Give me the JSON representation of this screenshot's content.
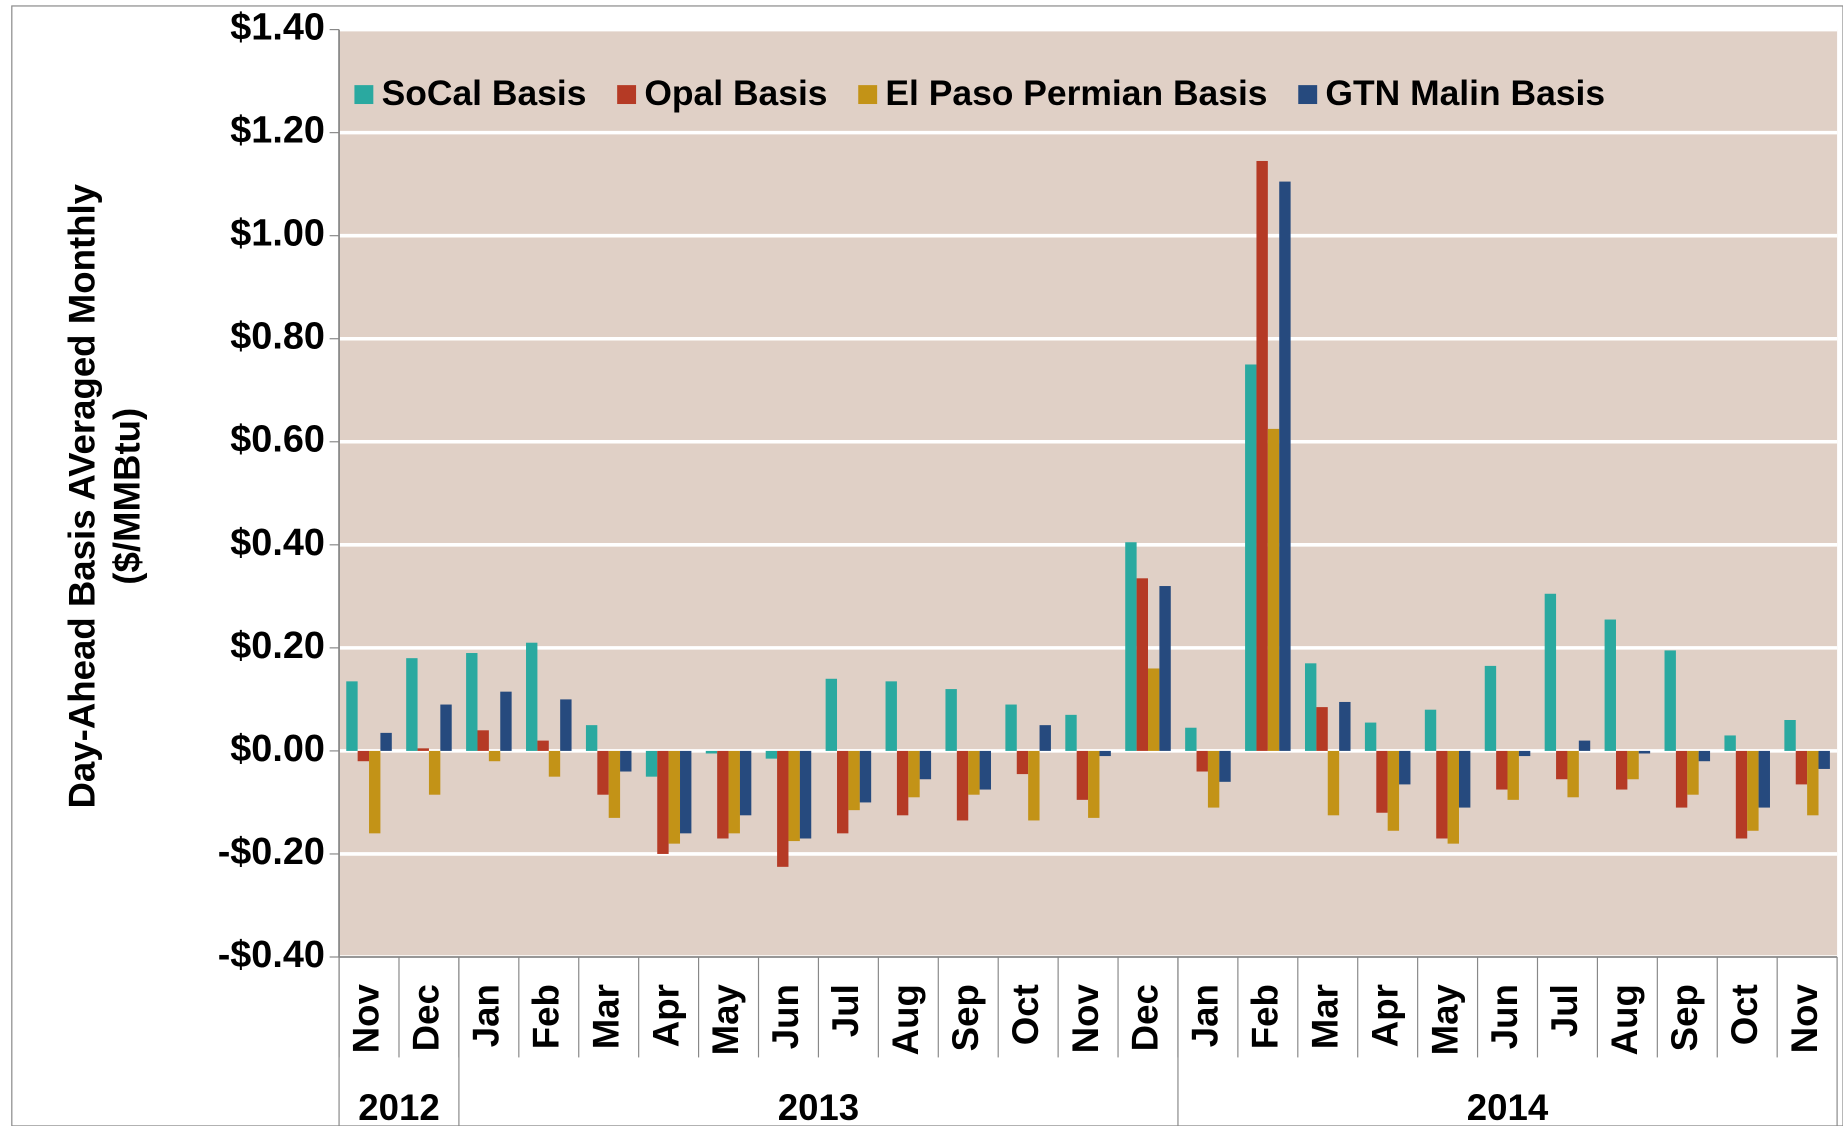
{
  "chart_data": {
    "type": "bar",
    "y_label": "Day-Ahead Basis AVeraged Monthly",
    "y_label_units": "($/MMBtu)",
    "groups": [
      {
        "label": "2012",
        "categories": [
          "Nov",
          "Dec"
        ]
      },
      {
        "label": "2013",
        "categories": [
          "Jan",
          "Feb",
          "Mar",
          "Apr",
          "May",
          "Jun",
          "Jul",
          "Aug",
          "Sep",
          "Oct",
          "Nov",
          "Dec"
        ]
      },
      {
        "label": "2014",
        "categories": [
          "Jan",
          "Feb",
          "Mar",
          "Apr",
          "May",
          "Jun",
          "Jul",
          "Aug",
          "Sep",
          "Oct",
          "Nov"
        ]
      }
    ],
    "series": [
      {
        "name": "SoCal Basis",
        "color": "#2aa9a0",
        "values": [
          0.135,
          0.18,
          0.19,
          0.21,
          0.05,
          -0.05,
          -0.005,
          -0.015,
          0.14,
          0.135,
          0.12,
          0.09,
          0.07,
          0.405,
          0.045,
          0.75,
          0.17,
          0.055,
          0.08,
          0.165,
          0.305,
          0.255,
          0.195,
          0.03,
          0.06
        ]
      },
      {
        "name": "Opal Basis",
        "color": "#b53a25",
        "values": [
          -0.02,
          0.005,
          0.04,
          0.02,
          -0.085,
          -0.2,
          -0.17,
          -0.225,
          -0.16,
          -0.125,
          -0.135,
          -0.045,
          -0.095,
          0.335,
          -0.04,
          1.145,
          0.085,
          -0.12,
          -0.17,
          -0.075,
          -0.055,
          -0.075,
          -0.11,
          -0.17,
          -0.065
        ]
      },
      {
        "name": "El Paso Permian Basis",
        "color": "#c39317",
        "values": [
          -0.16,
          -0.085,
          -0.02,
          -0.05,
          -0.13,
          -0.18,
          -0.16,
          -0.175,
          -0.115,
          -0.09,
          -0.085,
          -0.135,
          -0.13,
          0.16,
          -0.11,
          0.625,
          -0.125,
          -0.155,
          -0.18,
          -0.095,
          -0.09,
          -0.055,
          -0.085,
          -0.155,
          -0.125
        ]
      },
      {
        "name": "GTN Malin Basis",
        "color": "#264a7e",
        "values": [
          0.035,
          0.09,
          0.115,
          0.1,
          -0.04,
          -0.16,
          -0.125,
          -0.17,
          -0.1,
          -0.055,
          -0.075,
          0.05,
          -0.01,
          0.32,
          -0.06,
          1.105,
          0.095,
          -0.065,
          -0.11,
          -0.01,
          0.02,
          -0.005,
          -0.02,
          -0.11,
          -0.035
        ]
      }
    ],
    "ylim": [
      -0.4,
      1.4
    ],
    "yticks": [
      {
        "value": -0.4,
        "label": "-$0.40"
      },
      {
        "value": -0.2,
        "label": "-$0.20"
      },
      {
        "value": 0,
        "label": "$0.00"
      },
      {
        "value": 0.2,
        "label": "$0.20"
      },
      {
        "value": 0.4,
        "label": "$0.40"
      },
      {
        "value": 0.6,
        "label": "$0.60"
      },
      {
        "value": 0.8,
        "label": "$0.80"
      },
      {
        "value": 1.0,
        "label": "$1.00"
      },
      {
        "value": 1.2,
        "label": "$1.20"
      },
      {
        "value": 1.4,
        "label": "$1.40"
      }
    ],
    "grid": true,
    "plot_background": "#e0d0c6",
    "legend": "top"
  }
}
